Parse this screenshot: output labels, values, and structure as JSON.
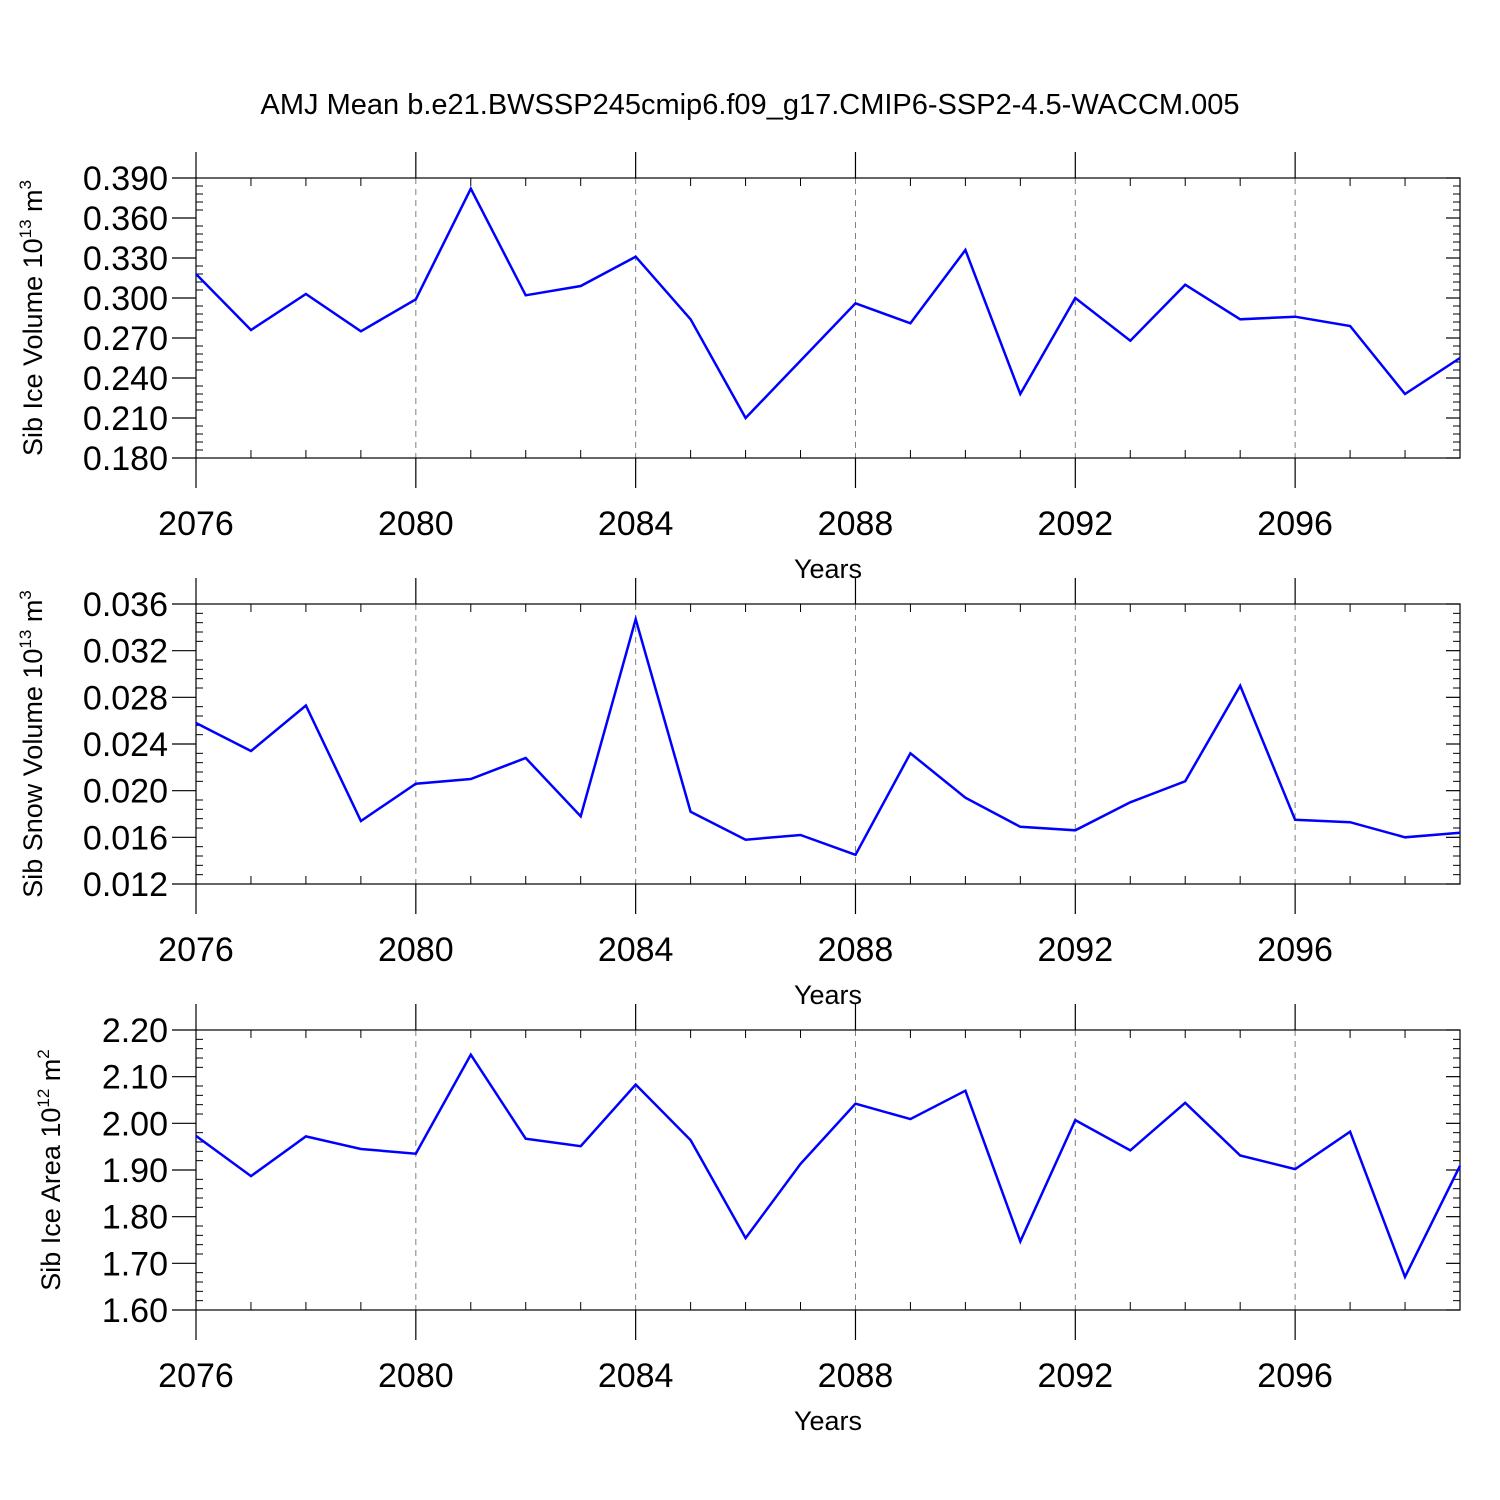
{
  "title": "AMJ Mean b.e21.BWSSP245cmip6.f09_g17.CMIP6-SSP2-4.5-WACCM.005",
  "colors": {
    "series": "#0000ff",
    "axis": "#000000",
    "grid": "#7f7f7f"
  },
  "chart_data": [
    {
      "type": "line",
      "title": "AMJ Mean b.e21.BWSSP245cmip6.f09_g17.CMIP6-SSP2-4.5-WACCM.005",
      "xlabel": "Years",
      "ylabel": {
        "text": "Sib Ice Volume 10",
        "exp": "13",
        "unit": " m",
        "unit_exp": "3"
      },
      "x": [
        2076,
        2077,
        2078,
        2079,
        2080,
        2081,
        2082,
        2083,
        2084,
        2085,
        2086,
        2087,
        2088,
        2089,
        2090,
        2091,
        2092,
        2093,
        2094,
        2095,
        2096,
        2097,
        2098,
        2099
      ],
      "values": [
        0.318,
        0.276,
        0.303,
        0.275,
        0.299,
        0.382,
        0.302,
        0.309,
        0.331,
        0.284,
        0.21,
        0.253,
        0.296,
        0.281,
        0.336,
        0.228,
        0.3,
        0.268,
        0.31,
        0.284,
        0.286,
        0.279,
        0.228,
        0.255
      ],
      "ylim": [
        0.18,
        0.39
      ],
      "xlim": [
        2076,
        2099
      ],
      "yticks": [
        "0.390",
        "0.360",
        "0.330",
        "0.300",
        "0.270",
        "0.240",
        "0.210",
        "0.180"
      ],
      "ytick_values": [
        0.39,
        0.36,
        0.33,
        0.3,
        0.27,
        0.24,
        0.21,
        0.18
      ],
      "xticks": [
        "2076",
        "2080",
        "2084",
        "2088",
        "2092",
        "2096"
      ],
      "xtick_values": [
        2076,
        2080,
        2084,
        2088,
        2092,
        2096
      ],
      "vgrid": [
        2080,
        2084,
        2088,
        2092,
        2096
      ],
      "grid": "vertical dashed"
    },
    {
      "type": "line",
      "xlabel": "Years",
      "ylabel": {
        "text": "Sib Snow Volume 10",
        "exp": "13",
        "unit": " m",
        "unit_exp": "3"
      },
      "x": [
        2076,
        2077,
        2078,
        2079,
        2080,
        2081,
        2082,
        2083,
        2084,
        2085,
        2086,
        2087,
        2088,
        2089,
        2090,
        2091,
        2092,
        2093,
        2094,
        2095,
        2096,
        2097,
        2098,
        2099
      ],
      "values": [
        0.0258,
        0.0234,
        0.0273,
        0.0174,
        0.0206,
        0.021,
        0.0228,
        0.0178,
        0.0347,
        0.0182,
        0.0158,
        0.0162,
        0.0145,
        0.0232,
        0.0194,
        0.0169,
        0.0166,
        0.019,
        0.0208,
        0.029,
        0.0175,
        0.0173,
        0.016,
        0.0164
      ],
      "ylim": [
        0.012,
        0.036
      ],
      "xlim": [
        2076,
        2099
      ],
      "yticks": [
        "0.036",
        "0.032",
        "0.028",
        "0.024",
        "0.020",
        "0.016",
        "0.012"
      ],
      "ytick_values": [
        0.036,
        0.032,
        0.028,
        0.024,
        0.02,
        0.016,
        0.012
      ],
      "xticks": [
        "2076",
        "2080",
        "2084",
        "2088",
        "2092",
        "2096"
      ],
      "xtick_values": [
        2076,
        2080,
        2084,
        2088,
        2092,
        2096
      ],
      "vgrid": [
        2080,
        2084,
        2088,
        2092,
        2096
      ],
      "grid": "vertical dashed"
    },
    {
      "type": "line",
      "xlabel": "Years",
      "ylabel": {
        "text": "Sib Ice Area 10",
        "exp": "12",
        "unit": " m",
        "unit_exp": "2"
      },
      "x": [
        2076,
        2077,
        2078,
        2079,
        2080,
        2081,
        2082,
        2083,
        2084,
        2085,
        2086,
        2087,
        2088,
        2089,
        2090,
        2091,
        2092,
        2093,
        2094,
        2095,
        2096,
        2097,
        2098,
        2099
      ],
      "values": [
        1.973,
        1.887,
        1.972,
        1.945,
        1.935,
        2.147,
        1.967,
        1.951,
        2.083,
        1.964,
        1.754,
        1.913,
        2.042,
        2.009,
        2.07,
        1.747,
        2.007,
        1.942,
        2.044,
        1.931,
        1.902,
        1.982,
        1.671,
        1.909
      ],
      "ylim": [
        1.6,
        2.2
      ],
      "xlim": [
        2076,
        2099
      ],
      "yticks": [
        "2.20",
        "2.10",
        "2.00",
        "1.90",
        "1.80",
        "1.70",
        "1.60"
      ],
      "ytick_values": [
        2.2,
        2.1,
        2.0,
        1.9,
        1.8,
        1.7,
        1.6
      ],
      "xticks": [
        "2076",
        "2080",
        "2084",
        "2088",
        "2092",
        "2096"
      ],
      "xtick_values": [
        2076,
        2080,
        2084,
        2088,
        2092,
        2096
      ],
      "vgrid": [
        2080,
        2084,
        2088,
        2092,
        2096
      ],
      "grid": "vertical dashed"
    }
  ]
}
